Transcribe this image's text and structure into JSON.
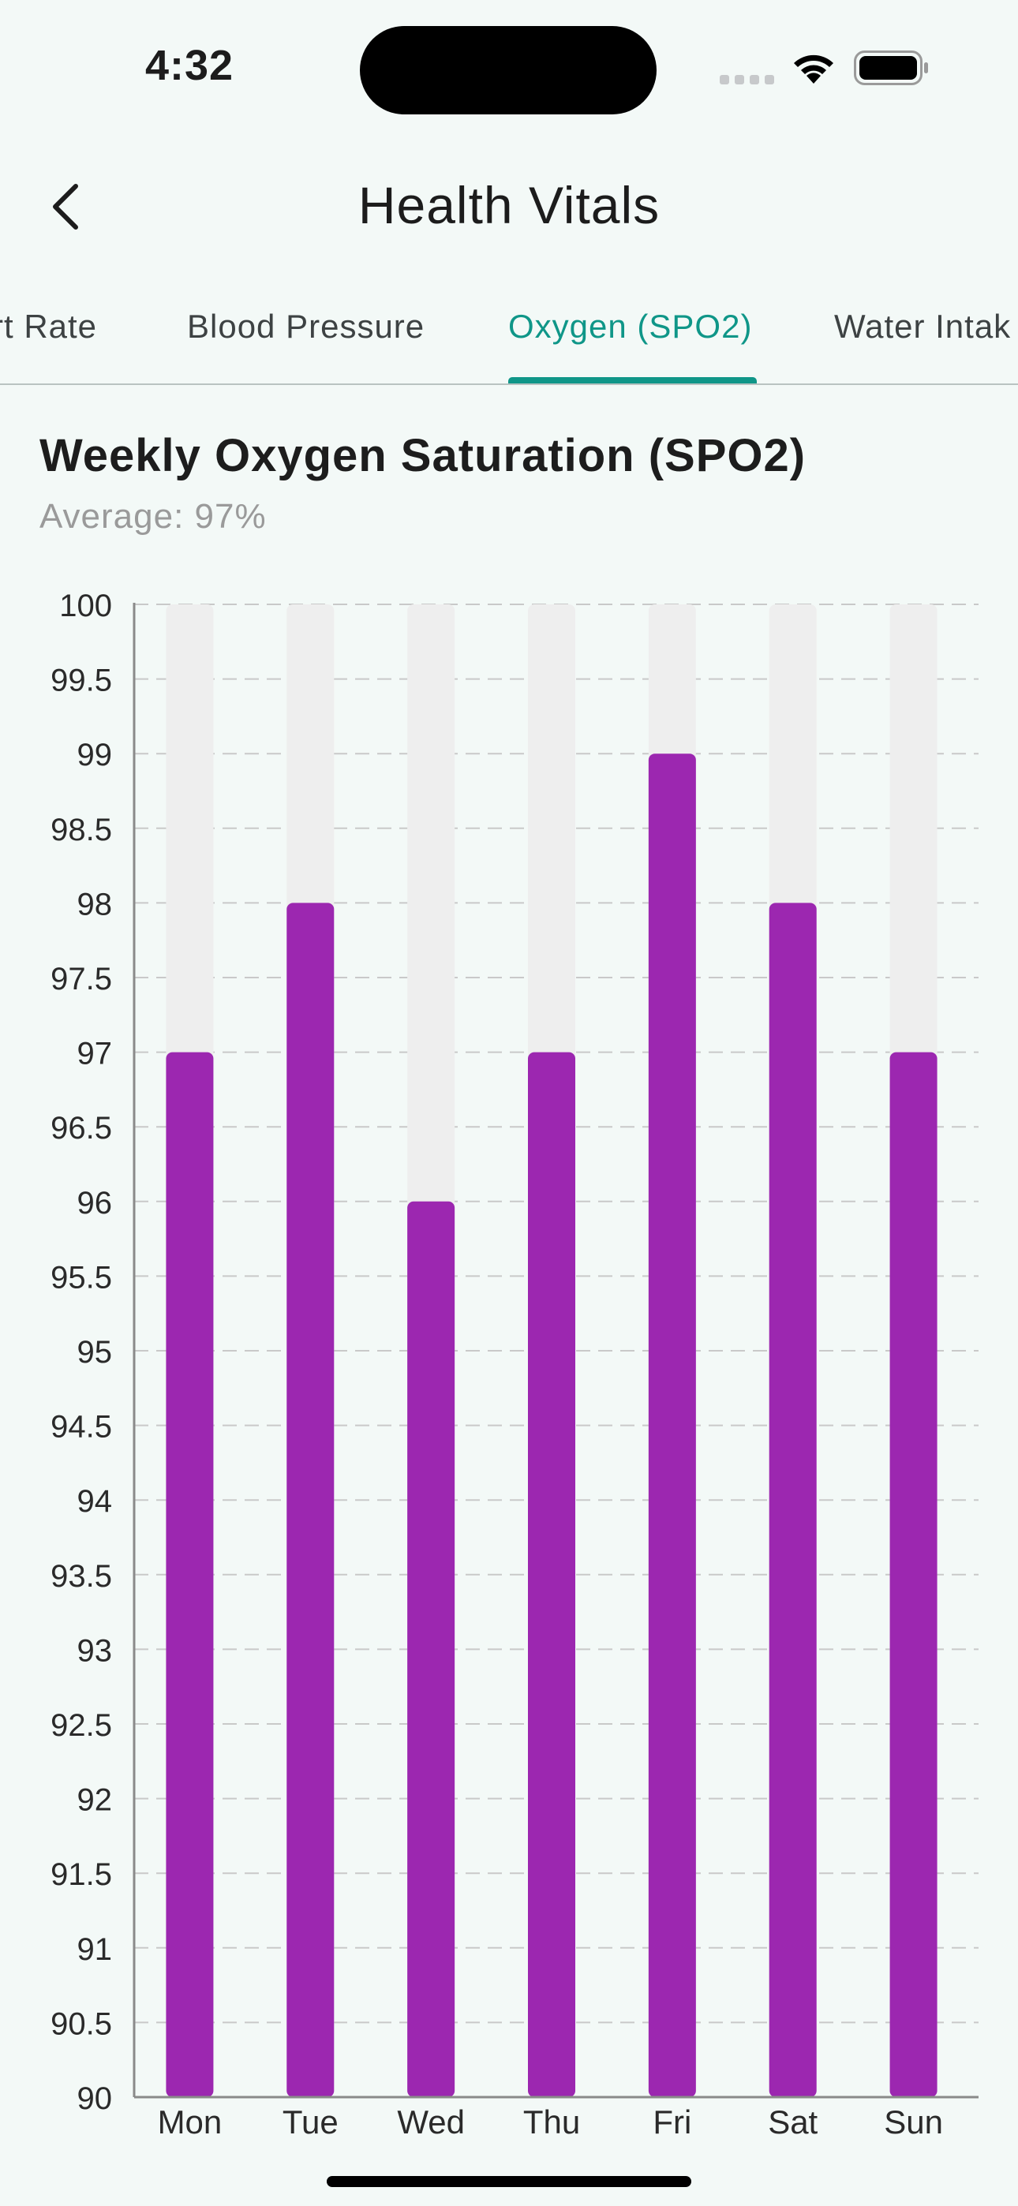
{
  "status_bar": {
    "time": "4:32"
  },
  "header": {
    "title": "Health Vitals",
    "back_icon": "chevron-left-icon"
  },
  "tabs": [
    {
      "label": "rt Rate",
      "active": false
    },
    {
      "label": "Blood Pressure",
      "active": false
    },
    {
      "label": "Oxygen (SPO2)",
      "active": true
    },
    {
      "label": "Water Intak",
      "active": false
    }
  ],
  "colors": {
    "accent": "#0f9688",
    "bar": "#9c27b0",
    "bar_track": "#eeeeee",
    "grid": "#c9c9c9"
  },
  "chart": {
    "title": "Weekly Oxygen Saturation (SPO2)",
    "subtitle": "Average: 97%"
  },
  "chart_data": {
    "type": "bar",
    "title": "Weekly Oxygen Saturation (SPO2)",
    "subtitle": "Average: 97%",
    "categories": [
      "Mon",
      "Tue",
      "Wed",
      "Thu",
      "Fri",
      "Sat",
      "Sun"
    ],
    "values": [
      97,
      98,
      96,
      97,
      99,
      98,
      97
    ],
    "ylim": [
      90,
      100
    ],
    "yticks": [
      "90",
      "90.5",
      "91",
      "91.5",
      "92",
      "92.5",
      "93",
      "93.5",
      "94",
      "94.5",
      "95",
      "95.5",
      "96",
      "96.5",
      "97",
      "97.5",
      "98",
      "98.5",
      "99",
      "99.5",
      "100"
    ],
    "grid": true,
    "background_track": true
  }
}
